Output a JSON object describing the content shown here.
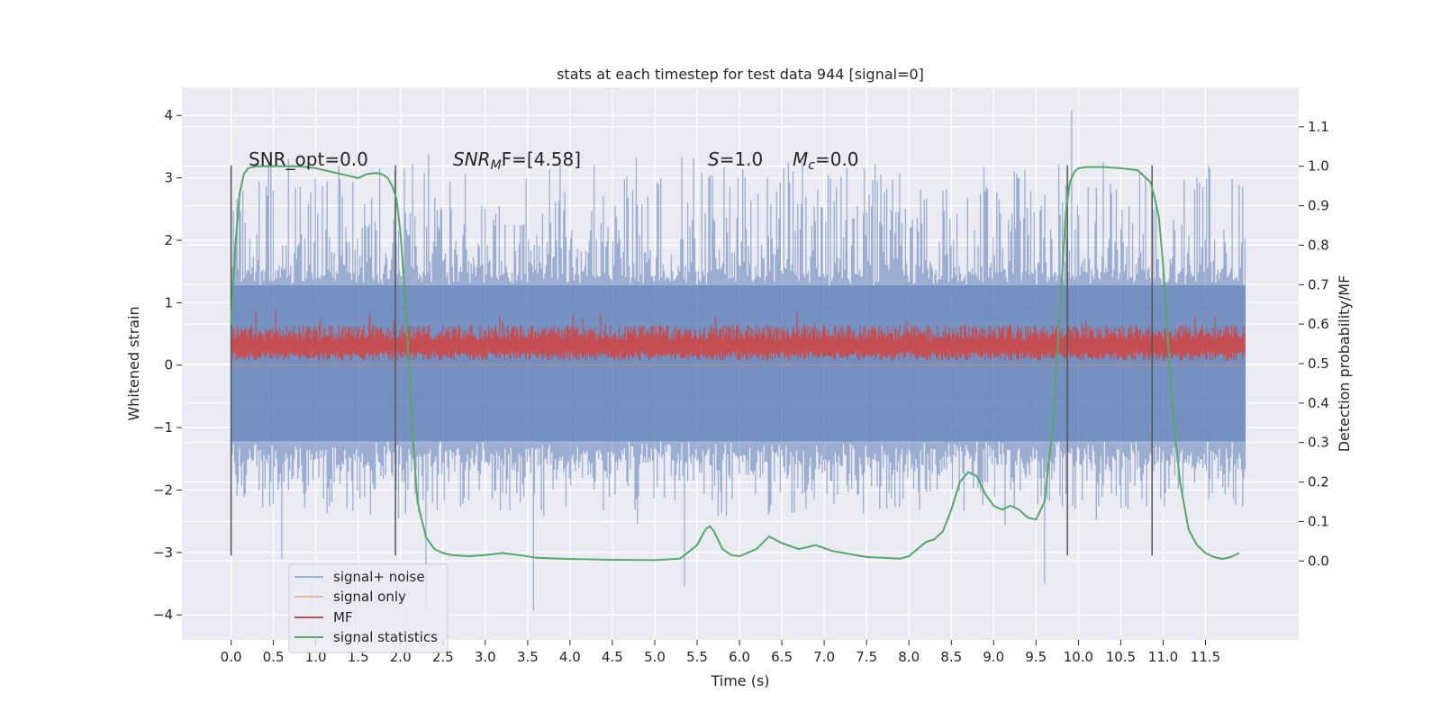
{
  "chart_data": {
    "type": "line",
    "title": "stats at each timestep for test data 944 [signal=0]",
    "xlabel": "Time (s)",
    "ylabel": "Whitened strain",
    "ylabel_right": "Detection probability/MF",
    "xlim": [
      -0.58,
      12.6
    ],
    "ylim": [
      -4.4,
      4.45
    ],
    "ylim_right": [
      -0.2,
      1.2
    ],
    "x_ticks": [
      0.0,
      0.5,
      1.0,
      1.5,
      2.0,
      2.5,
      3.0,
      3.5,
      4.0,
      4.5,
      5.0,
      5.5,
      6.0,
      6.5,
      7.0,
      7.5,
      8.0,
      8.5,
      9.0,
      9.5,
      10.0,
      10.5,
      11.0,
      11.5
    ],
    "x_tick_labels": [
      "0.0",
      "0.5",
      "1.0",
      "1.5",
      "2.0",
      "2.5",
      "3.0",
      "3.5",
      "4.0",
      "4.5",
      "5.0",
      "5.5",
      "6.0",
      "6.5",
      "7.0",
      "7.5",
      "8.0",
      "8.5",
      "9.0",
      "9.5",
      "10.0",
      "10.5",
      "11.0",
      "11.5"
    ],
    "y_ticks": [
      4,
      3,
      2,
      1,
      0,
      -1,
      -2,
      -3,
      -4
    ],
    "y_tick_labels": [
      "4",
      "3",
      "2",
      "1",
      "0",
      "−1",
      "−2",
      "−3",
      "−4"
    ],
    "y_ticks_right": [
      1.1,
      1.0,
      0.9,
      0.8,
      0.7,
      0.6,
      0.5,
      0.4,
      0.3,
      0.2,
      0.1,
      0.0
    ],
    "y_tick_labels_right": [
      "1.1",
      "1.0",
      "0.9",
      "0.8",
      "0.7",
      "0.6",
      "0.5",
      "0.4",
      "0.3",
      "0.2",
      "0.1",
      "0.0"
    ],
    "grid": true,
    "legend_position": "lower-left",
    "annotations": {
      "snr_opt": "SNR_opt=0.0",
      "snr_mf_sym": "SNR",
      "snr_mf_sub": "M",
      "snr_mf_rest": "F=[4.58]",
      "s_sym": "S",
      "s_rest": "=1.0",
      "mc_sym": "M",
      "mc_sub": "c",
      "mc_rest": "=0.0"
    },
    "vertical_markers": [
      0.0,
      1.94,
      9.87,
      10.87
    ],
    "vertical_marker_range": [
      -3.05,
      3.2
    ],
    "noise_band": {
      "x_range": [
        0.0,
        11.97
      ],
      "dense_low": -1.22,
      "dense_high": 1.28,
      "spike_high_range": [
        1.5,
        3.4
      ],
      "spike_low_range": [
        -2.6,
        -1.6
      ],
      "notable_spikes": [
        {
          "x": 9.92,
          "y": 4.08
        },
        {
          "x": 2.33,
          "y": 3.38
        },
        {
          "x": 3.57,
          "y": -3.93
        },
        {
          "x": 2.3,
          "y": -3.9
        },
        {
          "x": 0.6,
          "y": -3.1
        },
        {
          "x": 5.35,
          "y": -3.55
        },
        {
          "x": 9.6,
          "y": -3.5
        }
      ]
    },
    "mf_band": {
      "x_range": [
        0.0,
        11.97
      ],
      "low": 0.07,
      "high": 0.65
    },
    "signal_only_values": [
      0,
      0
    ],
    "series": [
      {
        "name": "signal+ noise",
        "color": "#4c72b0",
        "opacity": 0.5,
        "kind": "noise"
      },
      {
        "name": "signal only",
        "color": "#dd8452",
        "opacity": 0.5,
        "kind": "flat"
      },
      {
        "name": "MF",
        "color": "#c44e52",
        "kind": "mf"
      },
      {
        "name": "signal statistics",
        "color": "#55a868",
        "axis": "right",
        "x": [
          0.0,
          0.05,
          0.1,
          0.15,
          0.2,
          0.3,
          0.5,
          0.8,
          1.0,
          1.2,
          1.4,
          1.5,
          1.6,
          1.7,
          1.75,
          1.8,
          1.85,
          1.9,
          1.95,
          2.0,
          2.05,
          2.1,
          2.15,
          2.2,
          2.3,
          2.4,
          2.5,
          2.6,
          2.8,
          3.0,
          3.2,
          3.4,
          3.6,
          4.0,
          4.5,
          5.0,
          5.3,
          5.5,
          5.6,
          5.65,
          5.7,
          5.8,
          5.9,
          6.0,
          6.2,
          6.35,
          6.5,
          6.7,
          6.9,
          7.1,
          7.5,
          7.9,
          8.0,
          8.1,
          8.2,
          8.3,
          8.4,
          8.5,
          8.6,
          8.7,
          8.8,
          8.9,
          9.0,
          9.1,
          9.2,
          9.3,
          9.4,
          9.5,
          9.6,
          9.7,
          9.8,
          9.85,
          9.9,
          9.95,
          10.0,
          10.1,
          10.3,
          10.5,
          10.7,
          10.85,
          10.9,
          10.95,
          11.0,
          11.05,
          11.1,
          11.15,
          11.2,
          11.3,
          11.4,
          11.5,
          11.6,
          11.7,
          11.8,
          11.9
        ],
        "y": [
          0.6,
          0.8,
          0.93,
          0.98,
          0.995,
          1.0,
          1.0,
          1.0,
          0.995,
          0.985,
          0.975,
          0.97,
          0.98,
          0.983,
          0.982,
          0.978,
          0.97,
          0.95,
          0.92,
          0.83,
          0.68,
          0.5,
          0.3,
          0.15,
          0.06,
          0.03,
          0.02,
          0.015,
          0.012,
          0.015,
          0.02,
          0.015,
          0.008,
          0.005,
          0.003,
          0.002,
          0.006,
          0.04,
          0.08,
          0.088,
          0.075,
          0.03,
          0.015,
          0.012,
          0.03,
          0.062,
          0.045,
          0.03,
          0.04,
          0.025,
          0.01,
          0.006,
          0.012,
          0.03,
          0.048,
          0.055,
          0.075,
          0.13,
          0.2,
          0.225,
          0.215,
          0.17,
          0.14,
          0.13,
          0.14,
          0.13,
          0.11,
          0.105,
          0.15,
          0.35,
          0.7,
          0.88,
          0.96,
          0.985,
          0.995,
          0.998,
          0.998,
          0.995,
          0.99,
          0.96,
          0.92,
          0.87,
          0.75,
          0.58,
          0.42,
          0.3,
          0.2,
          0.08,
          0.04,
          0.02,
          0.01,
          0.005,
          0.01,
          0.02
        ]
      }
    ]
  }
}
